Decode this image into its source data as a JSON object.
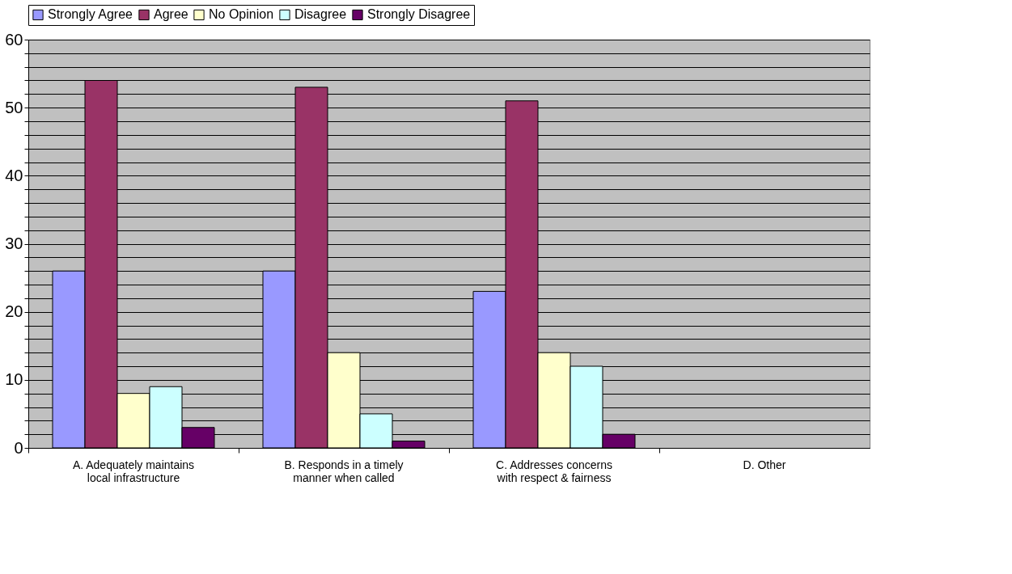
{
  "chart_data": {
    "type": "bar",
    "categories": [
      "A. Adequately maintains local infrastructure",
      "B. Responds in a timely manner when called",
      "C. Addresses concerns with respect & fairness",
      "D. Other"
    ],
    "series": [
      {
        "name": "Strongly Agree",
        "color": "#9999ff",
        "values": [
          26,
          26,
          23,
          null
        ]
      },
      {
        "name": "Agree",
        "color": "#993366",
        "values": [
          54,
          53,
          51,
          null
        ]
      },
      {
        "name": "No Opinion",
        "color": "#ffffcc",
        "values": [
          8,
          14,
          14,
          null
        ]
      },
      {
        "name": "Disagree",
        "color": "#ccffff",
        "values": [
          9,
          5,
          12,
          null
        ]
      },
      {
        "name": "Strongly Disagree",
        "color": "#660066",
        "values": [
          3,
          1,
          2,
          null
        ]
      }
    ],
    "ylim": [
      0,
      60
    ],
    "yticks": [
      0,
      {
        "value": 2,
        "label": null
      },
      {
        "value": 4,
        "label": null
      },
      {
        "value": 6,
        "label": null
      },
      {
        "value": 8,
        "label": null
      },
      10,
      {
        "value": 12,
        "label": null
      },
      {
        "value": 14,
        "label": null
      },
      {
        "value": 16,
        "label": null
      },
      {
        "value": 18,
        "label": null
      },
      20,
      {
        "value": 22,
        "label": null
      },
      {
        "value": 24,
        "label": null
      },
      {
        "value": 26,
        "label": null
      },
      {
        "value": 28,
        "label": null
      },
      30,
      {
        "value": 32,
        "label": null
      },
      {
        "value": 34,
        "label": null
      },
      {
        "value": 36,
        "label": null
      },
      {
        "value": 38,
        "label": null
      },
      40,
      {
        "value": 42,
        "label": null
      },
      {
        "value": 44,
        "label": null
      },
      {
        "value": 46,
        "label": null
      },
      {
        "value": 48,
        "label": null
      },
      50,
      {
        "value": 52,
        "label": null
      },
      {
        "value": 54,
        "label": null
      },
      {
        "value": 56,
        "label": null
      },
      {
        "value": 58,
        "label": null
      },
      60
    ],
    "grid": "y",
    "legend": "top"
  }
}
